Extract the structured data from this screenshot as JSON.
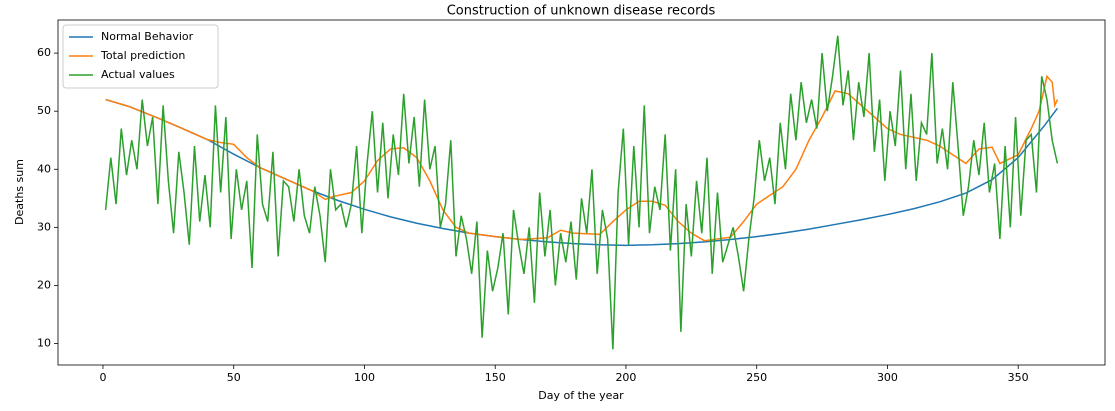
{
  "chart_data": {
    "type": "line",
    "title": "Construction of unknown disease records",
    "x_label": "Day of the year",
    "y_label": "Deaths sum",
    "xlim": [
      -17.2,
      383.2
    ],
    "xticks": [
      0,
      50,
      100,
      150,
      200,
      250,
      300,
      350
    ],
    "ylim": [
      6.3,
      65.7
    ],
    "yticks": [
      10,
      20,
      30,
      40,
      50,
      60
    ],
    "legend": "upper left",
    "series": [
      {
        "name": "Normal Behavior",
        "color": "#1f77b4",
        "x": [
          1,
          10,
          20,
          30,
          40,
          50,
          60,
          70,
          80,
          90,
          100,
          110,
          120,
          130,
          140,
          150,
          160,
          170,
          180,
          190,
          200,
          210,
          220,
          230,
          240,
          250,
          260,
          270,
          280,
          290,
          300,
          310,
          320,
          330,
          340,
          350,
          360,
          365
        ],
        "values": [
          52,
          50.8,
          49,
          47.1,
          45.1,
          42.6,
          40.3,
          38.3,
          36.3,
          34.6,
          33.1,
          31.8,
          30.7,
          29.8,
          29,
          28.4,
          27.9,
          27.5,
          27.2,
          27,
          26.9,
          27,
          27.2,
          27.5,
          27.9,
          28.4,
          29,
          29.7,
          30.5,
          31.3,
          32.2,
          33.2,
          34.4,
          35.9,
          38.2,
          42,
          47.5,
          50.5
        ]
      },
      {
        "name": "Total prediction",
        "color": "#ff7f0e",
        "x": [
          1,
          10,
          20,
          30,
          40,
          45,
          50,
          55,
          60,
          70,
          80,
          85,
          88,
          95,
          100,
          105,
          110,
          115,
          120,
          125,
          130,
          135,
          140,
          150,
          160,
          170,
          175,
          180,
          190,
          195,
          200,
          205,
          210,
          215,
          220,
          225,
          230,
          240,
          245,
          250,
          255,
          260,
          265,
          270,
          275,
          280,
          285,
          290,
          295,
          300,
          305,
          310,
          315,
          320,
          325,
          330,
          335,
          340,
          343,
          350,
          355,
          358,
          361,
          363,
          364,
          365
        ],
        "values": [
          52,
          50.8,
          49,
          47.1,
          45.1,
          44.6,
          44.3,
          42,
          40.3,
          38.3,
          36.3,
          34.8,
          35.3,
          36,
          38,
          41.5,
          43.5,
          43.7,
          42,
          38,
          33,
          30,
          29,
          28.4,
          27.9,
          28.2,
          29.5,
          29,
          28.8,
          31,
          33,
          34.5,
          34.5,
          33.8,
          31,
          29,
          27.7,
          28.3,
          31,
          34,
          35.5,
          37,
          40,
          45,
          49,
          53.5,
          53,
          51,
          49,
          47,
          46,
          45.5,
          45,
          44,
          42.5,
          41,
          43.5,
          43.8,
          41,
          42.5,
          47,
          50,
          56,
          55,
          51,
          52
        ]
      },
      {
        "name": "Actual values",
        "color": "#2ca02c",
        "x": [
          1,
          3,
          5,
          7,
          9,
          11,
          13,
          15,
          17,
          19,
          21,
          23,
          25,
          27,
          29,
          31,
          33,
          35,
          37,
          39,
          41,
          43,
          45,
          47,
          49,
          51,
          53,
          55,
          57,
          59,
          61,
          63,
          65,
          67,
          69,
          71,
          73,
          75,
          77,
          79,
          81,
          83,
          85,
          87,
          89,
          91,
          93,
          95,
          97,
          99,
          101,
          103,
          105,
          107,
          109,
          111,
          113,
          115,
          117,
          119,
          121,
          123,
          125,
          127,
          129,
          131,
          133,
          135,
          137,
          139,
          141,
          143,
          145,
          147,
          149,
          151,
          153,
          155,
          157,
          159,
          161,
          163,
          165,
          167,
          169,
          171,
          173,
          175,
          177,
          179,
          181,
          183,
          185,
          187,
          189,
          191,
          193,
          195,
          197,
          199,
          201,
          203,
          205,
          207,
          209,
          211,
          213,
          215,
          217,
          219,
          221,
          223,
          225,
          227,
          229,
          231,
          233,
          235,
          237,
          239,
          241,
          243,
          245,
          247,
          249,
          251,
          253,
          255,
          257,
          259,
          261,
          263,
          265,
          267,
          269,
          271,
          273,
          275,
          277,
          279,
          281,
          283,
          285,
          287,
          289,
          291,
          293,
          295,
          297,
          299,
          301,
          303,
          305,
          307,
          309,
          311,
          313,
          315,
          317,
          319,
          321,
          323,
          325,
          327,
          329,
          331,
          333,
          335,
          337,
          339,
          341,
          343,
          345,
          347,
          349,
          351,
          353,
          355,
          357,
          359,
          361,
          363,
          365
        ],
        "values": [
          33,
          42,
          34,
          47,
          39,
          45,
          40,
          52,
          44,
          49,
          34,
          51,
          38,
          29,
          43,
          36,
          27,
          44,
          31,
          39,
          30,
          51,
          36,
          49,
          28,
          40,
          33,
          38,
          23,
          46,
          34,
          31,
          43,
          25,
          38,
          37,
          31,
          40,
          32,
          29,
          37,
          32,
          24,
          40,
          33,
          34,
          30,
          34,
          44,
          29,
          41,
          50,
          36,
          48,
          35,
          46,
          39,
          53,
          41,
          49,
          37,
          52,
          40,
          44,
          30,
          34,
          45,
          25,
          32,
          28,
          22,
          31,
          11,
          26,
          19,
          23,
          29,
          15,
          33,
          27,
          22,
          30,
          17,
          36,
          25,
          33,
          20,
          29,
          24,
          31,
          21,
          35,
          29,
          40,
          22,
          33,
          28,
          9,
          36,
          47,
          27,
          44,
          30,
          51,
          29,
          37,
          33,
          46,
          26,
          40,
          12,
          34,
          25,
          38,
          29,
          42,
          22,
          36,
          24,
          27,
          30,
          25,
          19,
          28,
          35,
          45,
          38,
          42,
          34,
          48,
          40,
          53,
          45,
          55,
          48,
          52,
          47,
          60,
          50,
          56,
          63,
          51,
          57,
          45,
          55,
          49,
          60,
          43,
          52,
          38,
          50,
          44,
          57,
          40,
          53,
          38,
          48,
          46,
          60,
          41,
          47,
          40,
          55,
          44,
          32,
          37,
          45,
          39,
          48,
          36,
          41,
          28,
          44,
          30,
          49,
          32,
          45,
          46,
          36,
          56,
          52,
          45,
          41
        ]
      }
    ]
  }
}
